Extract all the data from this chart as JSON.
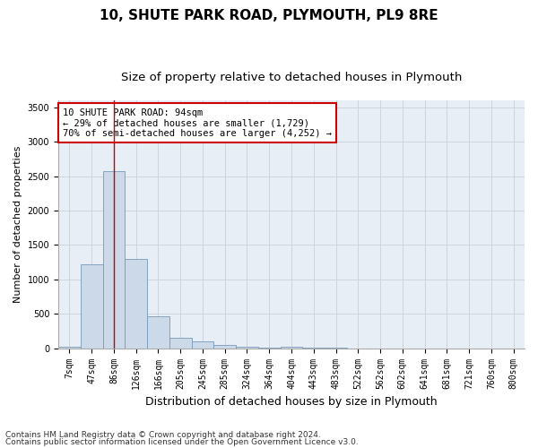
{
  "title": "10, SHUTE PARK ROAD, PLYMOUTH, PL9 8RE",
  "subtitle": "Size of property relative to detached houses in Plymouth",
  "xlabel": "Distribution of detached houses by size in Plymouth",
  "ylabel": "Number of detached properties",
  "bin_labels": [
    "7sqm",
    "47sqm",
    "86sqm",
    "126sqm",
    "166sqm",
    "205sqm",
    "245sqm",
    "285sqm",
    "324sqm",
    "364sqm",
    "404sqm",
    "443sqm",
    "483sqm",
    "522sqm",
    "562sqm",
    "602sqm",
    "641sqm",
    "681sqm",
    "721sqm",
    "760sqm",
    "800sqm"
  ],
  "bar_values": [
    27,
    1220,
    2580,
    1300,
    460,
    155,
    100,
    50,
    25,
    5,
    25,
    5,
    5,
    0,
    0,
    0,
    0,
    0,
    0,
    0,
    0
  ],
  "bar_color": "#ccd9e8",
  "bar_edgecolor": "#7799bb",
  "grid_color": "#c8d0dc",
  "background_color": "#e8eef5",
  "vline_x": 2,
  "annotation_text": "10 SHUTE PARK ROAD: 94sqm\n← 29% of detached houses are smaller (1,729)\n70% of semi-detached houses are larger (4,252) →",
  "annotation_box_color": "#ffffff",
  "annotation_box_edgecolor": "#cc0000",
  "vline_color": "#cc0000",
  "ylim": [
    0,
    3600
  ],
  "yticks": [
    0,
    500,
    1000,
    1500,
    2000,
    2500,
    3000,
    3500
  ],
  "footnote1": "Contains HM Land Registry data © Crown copyright and database right 2024.",
  "footnote2": "Contains public sector information licensed under the Open Government Licence v3.0.",
  "title_fontsize": 11,
  "subtitle_fontsize": 9.5,
  "xlabel_fontsize": 9,
  "ylabel_fontsize": 8,
  "tick_fontsize": 7,
  "annotation_fontsize": 7.5,
  "footnote_fontsize": 6.5
}
